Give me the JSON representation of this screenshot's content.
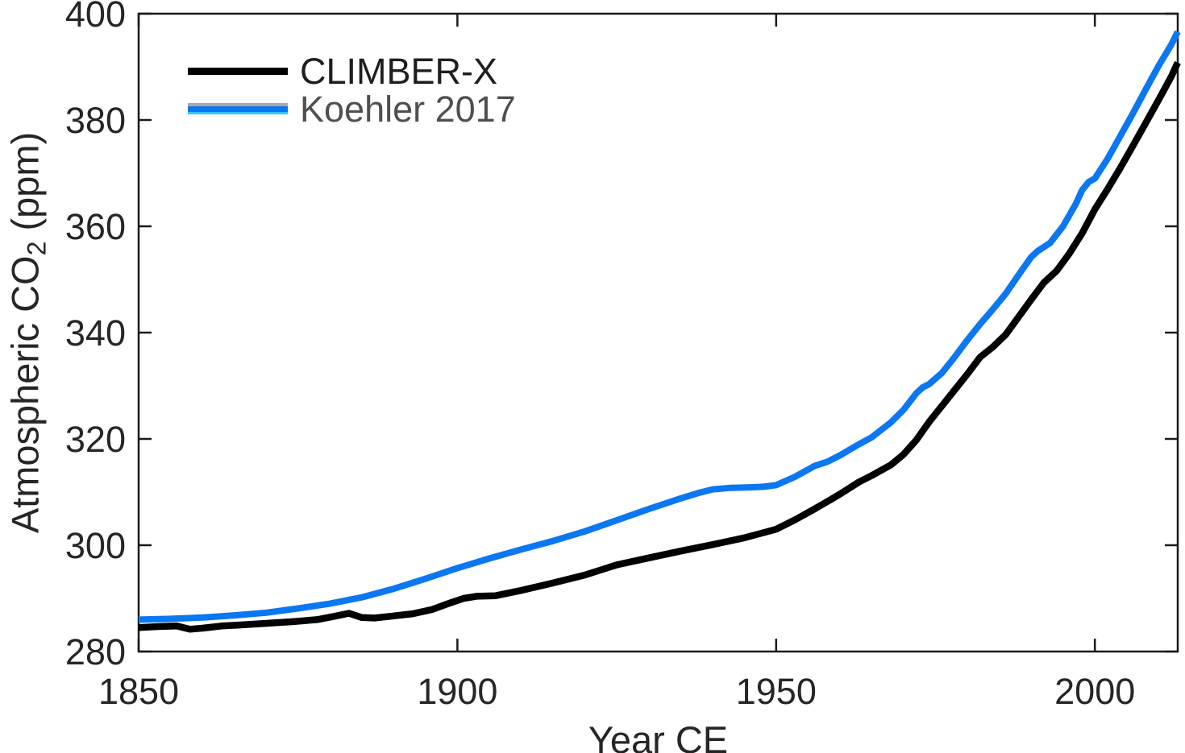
{
  "figure": {
    "background": "#ffffff",
    "axis_color": "#1a1a1a",
    "tick_label_color": "#262626"
  },
  "legend": {
    "entries": [
      "CLIMBER-X",
      "Koehler 2017"
    ],
    "label_colors": [
      "#1e1e1e",
      "#4f4f4f"
    ],
    "koehler_swatch_bands": [
      "#a8a8a8",
      "#0b77f0",
      "#35c4ff"
    ]
  },
  "chart_data": {
    "type": "line",
    "title": "",
    "xlabel": "Year CE",
    "ylabel": "Atmospheric CO2 (ppm)",
    "ylabel_parts": {
      "pre": "Atmospheric CO",
      "sub": "2",
      "post": " (ppm)"
    },
    "xlim": [
      1850,
      2013
    ],
    "ylim": [
      280,
      400
    ],
    "xticks": [
      1850,
      1900,
      1950,
      2000
    ],
    "yticks": [
      280,
      300,
      320,
      340,
      360,
      380,
      400
    ],
    "grid": false,
    "legend_position": "top-left-inside",
    "series": [
      {
        "name": "CLIMBER-X",
        "color": "#000000",
        "line_width": 8.5,
        "points": [
          [
            1850,
            284.5
          ],
          [
            1853,
            284.7
          ],
          [
            1856,
            284.8
          ],
          [
            1858,
            284.2
          ],
          [
            1860,
            284.4
          ],
          [
            1863,
            284.8
          ],
          [
            1866,
            285.0
          ],
          [
            1870,
            285.3
          ],
          [
            1874,
            285.6
          ],
          [
            1878,
            286.0
          ],
          [
            1881,
            286.7
          ],
          [
            1883,
            287.2
          ],
          [
            1885,
            286.4
          ],
          [
            1887,
            286.3
          ],
          [
            1890,
            286.7
          ],
          [
            1893,
            287.1
          ],
          [
            1896,
            287.9
          ],
          [
            1899,
            289.2
          ],
          [
            1901,
            290.0
          ],
          [
            1903,
            290.4
          ],
          [
            1906,
            290.5
          ],
          [
            1910,
            291.5
          ],
          [
            1915,
            292.9
          ],
          [
            1920,
            294.4
          ],
          [
            1925,
            296.3
          ],
          [
            1930,
            297.6
          ],
          [
            1935,
            298.9
          ],
          [
            1940,
            300.1
          ],
          [
            1945,
            301.4
          ],
          [
            1950,
            303.0
          ],
          [
            1953,
            304.8
          ],
          [
            1956,
            306.8
          ],
          [
            1958,
            308.2
          ],
          [
            1960,
            309.6
          ],
          [
            1963,
            311.9
          ],
          [
            1965,
            313.1
          ],
          [
            1968,
            315.1
          ],
          [
            1970,
            317.1
          ],
          [
            1972,
            319.8
          ],
          [
            1974,
            323.2
          ],
          [
            1976,
            326.2
          ],
          [
            1978,
            329.2
          ],
          [
            1980,
            332.2
          ],
          [
            1982,
            335.4
          ],
          [
            1984,
            337.3
          ],
          [
            1986,
            339.6
          ],
          [
            1988,
            342.9
          ],
          [
            1990,
            346.2
          ],
          [
            1992,
            349.4
          ],
          [
            1994,
            351.6
          ],
          [
            1996,
            354.9
          ],
          [
            1998,
            358.7
          ],
          [
            2000,
            363.2
          ],
          [
            2002,
            367.0
          ],
          [
            2004,
            371.0
          ],
          [
            2006,
            375.2
          ],
          [
            2008,
            379.5
          ],
          [
            2010,
            383.8
          ],
          [
            2012,
            388.2
          ],
          [
            2013,
            390.8
          ]
        ]
      },
      {
        "name": "Koehler 2017",
        "color": "#0b77f0",
        "line_width": 8,
        "points": [
          [
            1850,
            286.0
          ],
          [
            1855,
            286.15
          ],
          [
            1860,
            286.4
          ],
          [
            1865,
            286.8
          ],
          [
            1870,
            287.3
          ],
          [
            1875,
            288.1
          ],
          [
            1880,
            289.0
          ],
          [
            1885,
            290.2
          ],
          [
            1890,
            291.8
          ],
          [
            1895,
            293.7
          ],
          [
            1900,
            295.7
          ],
          [
            1905,
            297.5
          ],
          [
            1910,
            299.2
          ],
          [
            1915,
            300.8
          ],
          [
            1920,
            302.6
          ],
          [
            1925,
            304.7
          ],
          [
            1930,
            306.8
          ],
          [
            1935,
            308.8
          ],
          [
            1938,
            309.9
          ],
          [
            1940,
            310.5
          ],
          [
            1943,
            310.8
          ],
          [
            1946,
            310.9
          ],
          [
            1948,
            311.0
          ],
          [
            1950,
            311.3
          ],
          [
            1953,
            312.9
          ],
          [
            1956,
            314.9
          ],
          [
            1958,
            315.7
          ],
          [
            1960,
            316.9
          ],
          [
            1963,
            319.0
          ],
          [
            1965,
            320.3
          ],
          [
            1968,
            323.1
          ],
          [
            1970,
            325.5
          ],
          [
            1972,
            328.6
          ],
          [
            1973,
            329.7
          ],
          [
            1974,
            330.3
          ],
          [
            1976,
            332.4
          ],
          [
            1978,
            335.4
          ],
          [
            1980,
            338.6
          ],
          [
            1982,
            341.6
          ],
          [
            1984,
            344.4
          ],
          [
            1986,
            347.3
          ],
          [
            1988,
            350.8
          ],
          [
            1990,
            354.2
          ],
          [
            1991,
            355.3
          ],
          [
            1993,
            356.9
          ],
          [
            1995,
            360.0
          ],
          [
            1997,
            364.2
          ],
          [
            1998,
            366.8
          ],
          [
            1999,
            368.3
          ],
          [
            2000,
            369.0
          ],
          [
            2002,
            372.7
          ],
          [
            2004,
            377.0
          ],
          [
            2006,
            381.3
          ],
          [
            2008,
            385.8
          ],
          [
            2010,
            390.2
          ],
          [
            2012,
            394.2
          ],
          [
            2013,
            396.6
          ]
        ]
      }
    ]
  }
}
